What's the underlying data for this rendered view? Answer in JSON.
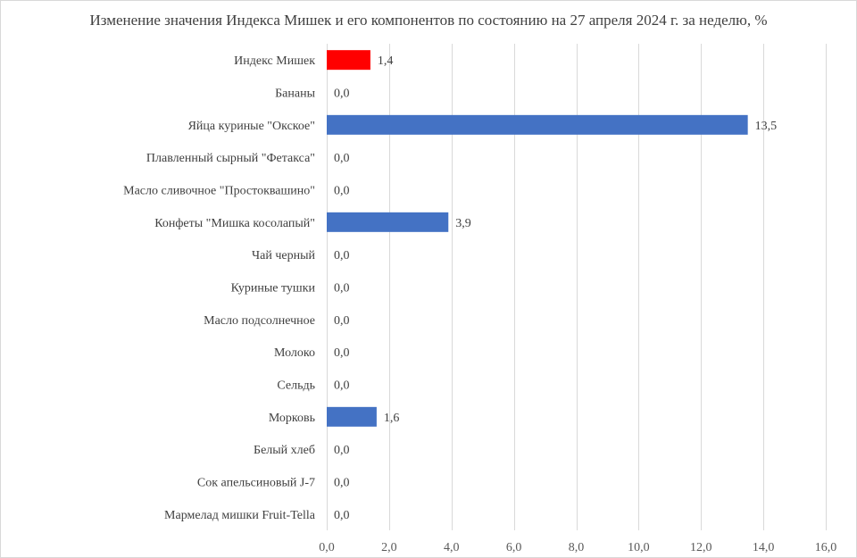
{
  "chart_data": {
    "type": "bar",
    "orientation": "horizontal",
    "title": "Изменение значения Индекса Мишек и его компонентов по состоянию на 27 апреля 2024 г. за неделю, %",
    "categories": [
      "Индекс Мишек",
      "Бананы",
      "Яйца куриные \"Окское\"",
      "Плавленный сырный \"Фетакса\"",
      "Масло сливочное \"Простоквашино\"",
      "Конфеты \"Мишка косолапый\"",
      "Чай черный",
      "Куриные тушки",
      "Масло подсолнечное",
      "Молоко",
      "Сельдь",
      "Морковь",
      "Белый хлеб",
      "Сок апельсиновый J-7",
      "Мармелад мишки Fruit-Tella"
    ],
    "values": [
      1.4,
      0.0,
      13.5,
      0.0,
      0.0,
      3.9,
      0.0,
      0.0,
      0.0,
      0.0,
      0.0,
      1.6,
      0.0,
      0.0,
      0.0
    ],
    "data_labels": [
      "1,4",
      "0,0",
      "13,5",
      "0,0",
      "0,0",
      "3,9",
      "0,0",
      "0,0",
      "0,0",
      "0,0",
      "0,0",
      "1,6",
      "0,0",
      "0,0",
      "0,0"
    ],
    "bar_colors": [
      "#ff0000",
      "#4472c4",
      "#4472c4",
      "#4472c4",
      "#4472c4",
      "#4472c4",
      "#4472c4",
      "#4472c4",
      "#4472c4",
      "#4472c4",
      "#4472c4",
      "#4472c4",
      "#4472c4",
      "#4472c4",
      "#4472c4"
    ],
    "xlim": [
      0,
      16
    ],
    "x_ticks": [
      0,
      2,
      4,
      6,
      8,
      10,
      12,
      14,
      16
    ],
    "x_tick_labels": [
      "0,0",
      "2,0",
      "4,0",
      "6,0",
      "8,0",
      "10,0",
      "12,0",
      "14,0",
      "16,0"
    ],
    "grid": "vertical",
    "legend": "none",
    "xlabel": "",
    "ylabel": ""
  }
}
